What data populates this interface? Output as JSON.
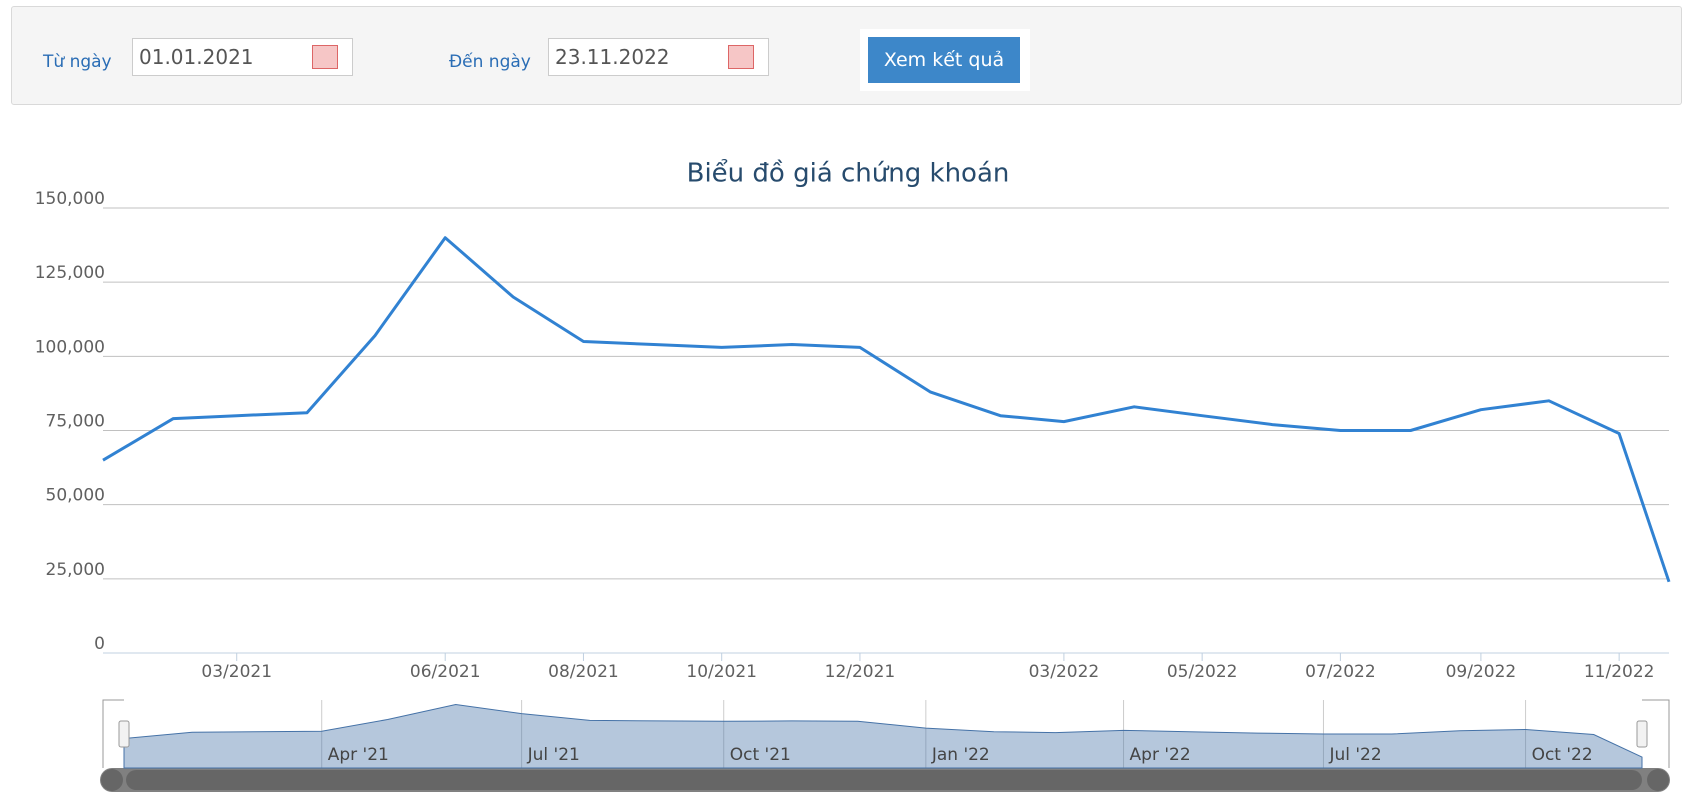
{
  "form": {
    "from_label": "Từ ngày",
    "from_value": "01.01.2021",
    "to_label": "Đến ngày",
    "to_value": "23.11.2022",
    "submit": "Xem kết quả"
  },
  "chart_data": {
    "type": "line",
    "title": "Biểu đồ giá chứng khoán",
    "x": [
      "2021-01",
      "2021-02",
      "2021-03",
      "2021-04",
      "2021-05",
      "2021-06",
      "2021-07",
      "2021-08",
      "2021-09",
      "2021-10",
      "2021-11",
      "2021-12",
      "2022-01",
      "2022-02",
      "2022-03",
      "2022-04",
      "2022-05",
      "2022-06",
      "2022-07",
      "2022-08",
      "2022-09",
      "2022-10",
      "2022-11",
      "2022-11-23"
    ],
    "values": [
      65000,
      79000,
      80000,
      81000,
      107000,
      140000,
      120000,
      105000,
      104000,
      103000,
      104000,
      103000,
      88000,
      80000,
      78000,
      83000,
      80000,
      77000,
      75000,
      75000,
      82000,
      85000,
      74000,
      24000
    ],
    "color": "#3182d2",
    "xlim": [
      "2021-01",
      "2022-11-23"
    ],
    "xticks": [
      {
        "value": "2021-03",
        "label": "03/2021"
      },
      {
        "value": "2021-06",
        "label": "06/2021"
      },
      {
        "value": "2021-08",
        "label": "08/2021"
      },
      {
        "value": "2021-10",
        "label": "10/2021"
      },
      {
        "value": "2021-12",
        "label": "12/2021"
      },
      {
        "value": "2022-03",
        "label": "03/2022"
      },
      {
        "value": "2022-05",
        "label": "05/2022"
      },
      {
        "value": "2022-07",
        "label": "07/2022"
      },
      {
        "value": "2022-09",
        "label": "09/2022"
      },
      {
        "value": "2022-11",
        "label": "11/2022"
      }
    ],
    "ylim": [
      0,
      150000
    ],
    "yticks": [
      0,
      {
        "value": 25000,
        "label": "25,000"
      },
      {
        "value": 50000,
        "label": "50,000"
      },
      {
        "value": 75000,
        "label": "75,000"
      },
      {
        "value": 100000,
        "label": "100,000"
      },
      {
        "value": 125000,
        "label": "125,000"
      },
      {
        "value": 150000,
        "label": "150,000"
      }
    ],
    "grid": true,
    "navigator_ticks": [
      {
        "value": "2021-04",
        "label": "Apr '21"
      },
      {
        "value": "2021-07",
        "label": "Jul '21"
      },
      {
        "value": "2021-10",
        "label": "Oct '21"
      },
      {
        "value": "2022-01",
        "label": "Jan '22"
      },
      {
        "value": "2022-04",
        "label": "Apr '22"
      },
      {
        "value": "2022-07",
        "label": "Jul '22"
      },
      {
        "value": "2022-10",
        "label": "Oct '22"
      }
    ]
  }
}
